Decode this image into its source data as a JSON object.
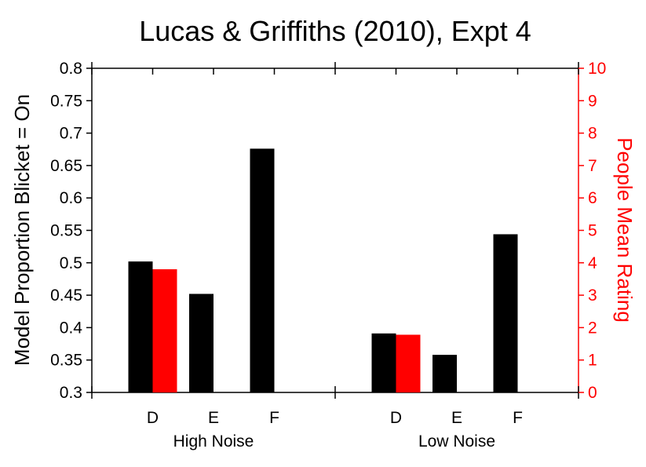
{
  "chart_data": {
    "type": "bar",
    "title": "Lucas & Griffiths (2010), Expt 4",
    "ylabel_left": "Model Proportion Blicket = On",
    "ylabel_right": "People Mean Rating",
    "ylim_left": [
      0.3,
      0.8
    ],
    "ylim_right": [
      0,
      10
    ],
    "yticks_left": [
      "0.3",
      "0.35",
      "0.4",
      "0.45",
      "0.5",
      "0.55",
      "0.6",
      "0.65",
      "0.7",
      "0.75",
      "0.8"
    ],
    "yticks_right": [
      "0",
      "1",
      "2",
      "3",
      "4",
      "5",
      "6",
      "7",
      "8",
      "9",
      "10"
    ],
    "groups": [
      {
        "name": "High Noise",
        "categories": [
          "D",
          "E",
          "F"
        ],
        "model": [
          0.502,
          0.452,
          0.676
        ],
        "people": [
          3.8,
          null,
          null
        ]
      },
      {
        "name": "Low Noise",
        "categories": [
          "D",
          "E",
          "F"
        ],
        "model": [
          0.391,
          0.358,
          0.544
        ],
        "people": [
          1.78,
          null,
          null
        ]
      }
    ],
    "series": [
      {
        "name": "Model",
        "axis": "left",
        "color": "#000000"
      },
      {
        "name": "People",
        "axis": "right",
        "color": "#ff0000"
      }
    ],
    "grid": false,
    "legend": "none",
    "colors": {
      "left_axis": "#000000",
      "right_axis": "#ff0000"
    }
  }
}
